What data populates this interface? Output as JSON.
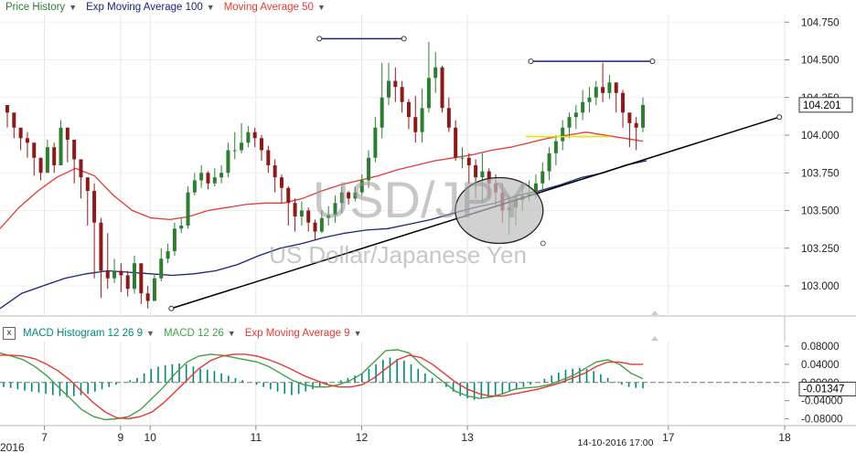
{
  "legend_top": [
    {
      "label": "Price History",
      "color": "#2e7d32"
    },
    {
      "label": "Exp Moving Average 100",
      "color": "#1a237e"
    },
    {
      "label": "Moving Average 50",
      "color": "#e53935"
    }
  ],
  "legend_bottom": [
    {
      "label": "MACD Histogram 12 26 9",
      "color": "#00897b"
    },
    {
      "label": "MACD 12 26",
      "color": "#43a047"
    },
    {
      "label": "Exp Moving Average 9",
      "color": "#e53935"
    }
  ],
  "close_symbol": "x",
  "watermark": {
    "symbol": "USD/JPY",
    "name": "US Dollar/Japanese Yen"
  },
  "crosshair_date": "14-10-2016 17:00",
  "year_label": "2016",
  "chart_data": [
    {
      "type": "candlestick",
      "panel": "price",
      "ylim": [
        102.8,
        104.8
      ],
      "yticks": [
        "104.750",
        "104.500",
        "104.250",
        "104.000",
        "103.750",
        "103.500",
        "103.250",
        "103.000"
      ],
      "current_value": "104.201",
      "x_ticks": [
        "7",
        "9",
        "10",
        "11",
        "12",
        "13",
        "17",
        "18"
      ],
      "x_tick_days": [
        7.0,
        7.72,
        8.0,
        9.0,
        10.0,
        11.0,
        12.9,
        14.0
      ],
      "x_range": [
        6.58,
        14.0
      ],
      "series": [
        {
          "name": "Price History",
          "color_up": "#2e7d32",
          "color_down": "#8b1a1a",
          "close": [
            104.15,
            104.05,
            103.98,
            103.95,
            103.85,
            103.75,
            103.92,
            103.8,
            104.05,
            103.97,
            103.84,
            103.72,
            103.63,
            103.42,
            103.1,
            103.05,
            103.1,
            103.07,
            102.98,
            103.15,
            102.95,
            102.9,
            103.05,
            103.18,
            103.23,
            103.38,
            103.4,
            103.62,
            103.7,
            103.75,
            103.68,
            103.72,
            103.75,
            103.9,
            103.9,
            103.95,
            104.02,
            103.98,
            103.9,
            103.8,
            103.72,
            103.65,
            103.55,
            103.46,
            103.5,
            103.42,
            103.36,
            103.45,
            103.47,
            103.55,
            103.62,
            103.58,
            103.62,
            103.7,
            103.85,
            104.05,
            104.25,
            104.36,
            104.32,
            104.22,
            104.12,
            104.02,
            104.18,
            104.38,
            104.45,
            104.18,
            104.05,
            103.85,
            103.85,
            103.8,
            103.72,
            103.76,
            103.68,
            103.62,
            103.5,
            103.52,
            103.57,
            103.6,
            103.62,
            103.68,
            103.76,
            103.88,
            103.96,
            104.05,
            104.12,
            104.15,
            104.22,
            104.25,
            104.32,
            104.28,
            104.35,
            104.28,
            104.15,
            104.08,
            104.05,
            104.2
          ],
          "high": [
            104.2,
            104.1,
            104.05,
            104.02,
            103.92,
            103.85,
            103.97,
            103.95,
            104.1,
            104.05,
            103.92,
            103.78,
            103.68,
            103.68,
            103.45,
            103.35,
            103.18,
            103.15,
            103.1,
            103.2,
            103.05,
            103.0,
            103.08,
            103.25,
            103.28,
            103.42,
            103.45,
            103.66,
            103.75,
            103.8,
            103.76,
            103.78,
            103.8,
            103.95,
            104.02,
            104.08,
            104.06,
            104.05,
            104.0,
            103.93,
            103.84,
            103.74,
            103.66,
            103.58,
            103.56,
            103.52,
            103.44,
            103.5,
            103.53,
            103.6,
            103.66,
            103.63,
            103.66,
            103.74,
            103.9,
            104.12,
            104.48,
            104.48,
            104.45,
            104.36,
            104.24,
            104.26,
            104.31,
            104.62,
            104.55,
            104.46,
            104.25,
            104.1,
            103.92,
            103.88,
            103.84,
            103.88,
            103.78,
            103.74,
            103.68,
            103.6,
            103.6,
            103.68,
            103.7,
            103.74,
            103.82,
            103.92,
            104.0,
            104.1,
            104.15,
            104.2,
            104.3,
            104.32,
            104.36,
            104.48,
            104.4,
            104.34,
            104.3,
            104.1,
            104.12,
            104.25
          ],
          "low": [
            104.05,
            103.98,
            103.9,
            103.85,
            103.73,
            103.7,
            103.85,
            103.75,
            103.95,
            103.82,
            103.68,
            103.58,
            103.4,
            103.05,
            102.92,
            102.98,
            103.02,
            102.96,
            102.93,
            102.95,
            102.88,
            102.85,
            102.9,
            103.03,
            103.15,
            103.2,
            103.35,
            103.38,
            103.6,
            103.65,
            103.64,
            103.66,
            103.68,
            103.72,
            103.84,
            103.88,
            103.92,
            103.92,
            103.83,
            103.75,
            103.62,
            103.55,
            103.4,
            103.36,
            103.4,
            103.36,
            103.3,
            103.35,
            103.4,
            103.42,
            103.48,
            103.54,
            103.56,
            103.6,
            103.65,
            103.82,
            103.98,
            104.2,
            104.22,
            104.15,
            104.04,
            103.95,
            103.95,
            104.15,
            104.28,
            104.15,
            104.02,
            103.83,
            103.78,
            103.68,
            103.58,
            103.55,
            103.58,
            103.52,
            103.42,
            103.34,
            103.4,
            103.5,
            103.56,
            103.58,
            103.62,
            103.7,
            103.8,
            103.9,
            103.98,
            104.04,
            104.1,
            104.15,
            104.2,
            104.22,
            104.24,
            104.15,
            104.05,
            103.92,
            103.9,
            104.02
          ]
        },
        {
          "name": "Exp Moving Average 100",
          "color": "#1a237e",
          "values": [
            102.85,
            102.95,
            103.0,
            103.05,
            103.08,
            103.1,
            103.09,
            103.08,
            103.07,
            103.08,
            103.1,
            103.14,
            103.2,
            103.25,
            103.28,
            103.32,
            103.35,
            103.37,
            103.38,
            103.41,
            103.44,
            103.48,
            103.52,
            103.55,
            103.6,
            103.63,
            103.67,
            103.72,
            103.75,
            103.8,
            103.83
          ]
        },
        {
          "name": "Moving Average 50",
          "color": "#e53935",
          "values": [
            103.38,
            103.52,
            103.63,
            103.72,
            103.78,
            103.73,
            103.6,
            103.5,
            103.45,
            103.44,
            103.46,
            103.5,
            103.52,
            103.54,
            103.55,
            103.55,
            103.58,
            103.63,
            103.67,
            103.7,
            103.73,
            103.77,
            103.8,
            103.83,
            103.85,
            103.87,
            103.9,
            103.92,
            103.95,
            103.98,
            104.0,
            104.02,
            104.0,
            103.98,
            103.96
          ]
        }
      ],
      "annotations": {
        "trendline": [
          [
            8.2,
            102.85
          ],
          [
            13.95,
            104.12
          ]
        ],
        "resistance_1": [
          [
            9.6,
            104.64
          ],
          [
            10.4,
            104.64
          ]
        ],
        "resistance_2": [
          [
            11.6,
            104.49
          ],
          [
            12.75,
            104.49
          ]
        ],
        "support_short": [
          [
            11.55,
            103.99
          ],
          [
            12.35,
            103.99
          ]
        ],
        "circle_center": [
          11.3,
          103.5
        ]
      }
    },
    {
      "type": "macd",
      "panel": "indicator",
      "ylim": [
        -0.095,
        0.09
      ],
      "yticks": [
        "0.08000",
        "0.04000",
        "0.00000",
        "-0.04000",
        "-0.08000"
      ],
      "current_value": "-0.01347",
      "series": [
        {
          "name": "MACD Histogram 12 26 9",
          "color": "#00897b",
          "values": [
            -0.01,
            -0.012,
            -0.015,
            -0.018,
            -0.02,
            -0.022,
            -0.025,
            -0.028,
            -0.03,
            -0.032,
            -0.03,
            -0.028,
            -0.025,
            -0.02,
            -0.015,
            -0.01,
            -0.005,
            0.0,
            0.005,
            0.01,
            0.02,
            0.03,
            0.035,
            0.038,
            0.04,
            0.042,
            0.04,
            0.035,
            0.03,
            0.028,
            0.025,
            0.02,
            0.015,
            0.01,
            0.005,
            0.0,
            -0.005,
            -0.01,
            -0.015,
            -0.02,
            -0.025,
            -0.028,
            -0.025,
            -0.02,
            -0.015,
            -0.01,
            -0.005,
            0.0,
            0.005,
            0.01,
            0.015,
            0.02,
            0.03,
            0.04,
            0.05,
            0.055,
            0.052,
            0.048,
            0.04,
            0.03,
            0.02,
            0.01,
            0.0,
            -0.01,
            -0.02,
            -0.03,
            -0.035,
            -0.038,
            -0.035,
            -0.032,
            -0.03,
            -0.025,
            -0.02,
            -0.015,
            -0.01,
            -0.005,
            0.0,
            0.008,
            0.015,
            0.022,
            0.028,
            0.03,
            0.032,
            0.03,
            0.025,
            0.018,
            0.01,
            0.002,
            -0.005,
            -0.01,
            -0.012,
            -0.013
          ]
        },
        {
          "name": "MACD 12 26",
          "color": "#43a047",
          "values": [
            0.065,
            0.058,
            0.05,
            0.035,
            0.015,
            -0.01,
            -0.035,
            -0.06,
            -0.075,
            -0.082,
            -0.08,
            -0.075,
            -0.06,
            -0.035,
            -0.01,
            0.02,
            0.045,
            0.058,
            0.062,
            0.06,
            0.055,
            0.05,
            0.045,
            0.035,
            0.02,
            0.005,
            -0.005,
            -0.01,
            -0.01,
            -0.005,
            0.005,
            0.02,
            0.045,
            0.07,
            0.072,
            0.065,
            0.04,
            0.02,
            0.0,
            -0.02,
            -0.03,
            -0.035,
            -0.032,
            -0.025,
            -0.015,
            -0.012,
            -0.01,
            -0.005,
            0.005,
            0.015,
            0.03,
            0.045,
            0.05,
            0.04,
            0.02,
            0.008
          ]
        },
        {
          "name": "Exp Moving Average 9",
          "color": "#e53935",
          "values": [
            0.06,
            0.06,
            0.058,
            0.052,
            0.04,
            0.025,
            0.005,
            -0.02,
            -0.045,
            -0.065,
            -0.078,
            -0.08,
            -0.075,
            -0.065,
            -0.045,
            -0.02,
            0.005,
            0.03,
            0.048,
            0.058,
            0.062,
            0.062,
            0.058,
            0.05,
            0.04,
            0.028,
            0.015,
            0.005,
            -0.005,
            -0.01,
            -0.01,
            -0.005,
            0.01,
            0.03,
            0.05,
            0.06,
            0.055,
            0.04,
            0.02,
            0.0,
            -0.015,
            -0.025,
            -0.03,
            -0.03,
            -0.025,
            -0.02,
            -0.015,
            -0.008,
            0.0,
            0.01,
            0.02,
            0.035,
            0.045,
            0.045,
            0.04,
            0.04
          ]
        }
      ]
    }
  ]
}
